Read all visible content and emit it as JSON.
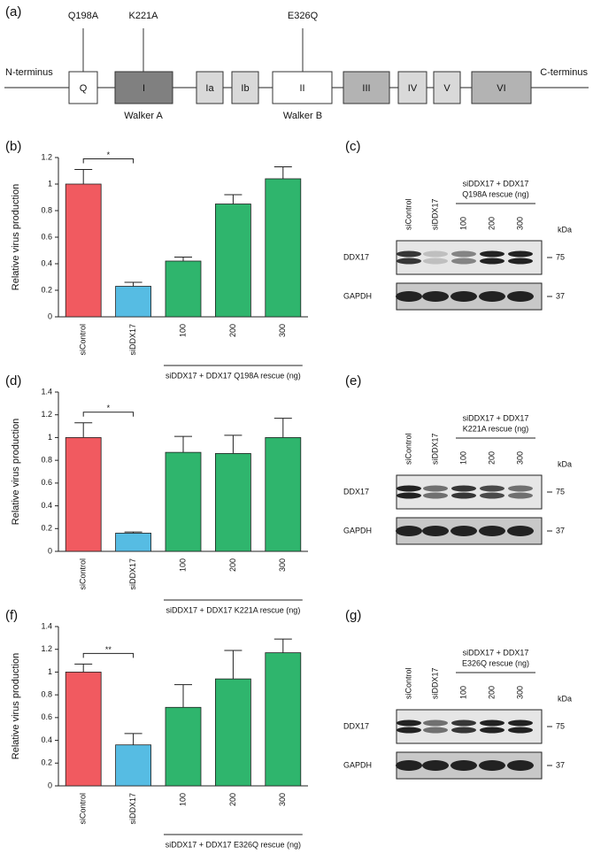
{
  "diagram": {
    "label": "(a)",
    "n_terminus": "N-terminus",
    "c_terminus": "C-terminus",
    "domains": [
      "Q",
      "I",
      "Ia",
      "Ib",
      "II",
      "III",
      "IV",
      "V",
      "VI"
    ],
    "mutations": [
      "Q198A",
      "K221A",
      "E326Q"
    ],
    "motifs": [
      "Walker A",
      "Walker B"
    ]
  },
  "chart_data": [
    {
      "type": "bar",
      "label": "(b)",
      "ylabel": "Relative virus production",
      "categories": [
        "siControl",
        "siDDX17",
        "100",
        "200",
        "300"
      ],
      "values": [
        1.0,
        0.23,
        0.42,
        0.85,
        1.04
      ],
      "errors": [
        0.11,
        0.03,
        0.03,
        0.07,
        0.09
      ],
      "colors": [
        "#f15a60",
        "#56bce3",
        "#2fb56d",
        "#2fb56d",
        "#2fb56d"
      ],
      "ylim": [
        0,
        1.2
      ],
      "yticks": [
        0,
        0.2,
        0.4,
        0.6,
        0.8,
        1,
        1.2
      ],
      "significance": "*",
      "group_label": "siDDX17 + DDX17 Q198A rescue (ng)"
    },
    {
      "type": "bar",
      "label": "(d)",
      "ylabel": "Relative virus production",
      "categories": [
        "siControl",
        "siDDX17",
        "100",
        "200",
        "300"
      ],
      "values": [
        1.0,
        0.16,
        0.87,
        0.86,
        1.0
      ],
      "errors": [
        0.13,
        0.01,
        0.14,
        0.16,
        0.17
      ],
      "colors": [
        "#f15a60",
        "#56bce3",
        "#2fb56d",
        "#2fb56d",
        "#2fb56d"
      ],
      "ylim": [
        0,
        1.4
      ],
      "yticks": [
        0,
        0.2,
        0.4,
        0.6,
        0.8,
        1,
        1.2,
        1.4
      ],
      "significance": "*",
      "group_label": "siDDX17 + DDX17 K221A rescue (ng)"
    },
    {
      "type": "bar",
      "label": "(f)",
      "ylabel": "Relative virus production",
      "categories": [
        "siControl",
        "siDDX17",
        "100",
        "200",
        "300"
      ],
      "values": [
        1.0,
        0.36,
        0.69,
        0.94,
        1.17
      ],
      "errors": [
        0.07,
        0.1,
        0.2,
        0.25,
        0.12
      ],
      "colors": [
        "#f15a60",
        "#56bce3",
        "#2fb56d",
        "#2fb56d",
        "#2fb56d"
      ],
      "ylim": [
        0,
        1.4
      ],
      "yticks": [
        0,
        0.2,
        0.4,
        0.6,
        0.8,
        1,
        1.2,
        1.4
      ],
      "significance": "**",
      "group_label": "siDDX17 + DDX17 E326Q rescue (ng)"
    }
  ],
  "blots": [
    {
      "label": "(c)",
      "lanes": [
        "siControl",
        "siDDX17",
        "100",
        "200",
        "300"
      ],
      "header": [
        "siDDX17 + DDX17",
        "Q198A rescue (ng)"
      ],
      "unit": "kDa",
      "rows": [
        "DDX17",
        "GAPDH"
      ],
      "markers": [
        "75",
        "37"
      ]
    },
    {
      "label": "(e)",
      "lanes": [
        "siControl",
        "siDDX17",
        "100",
        "200",
        "300"
      ],
      "header": [
        "siDDX17 + DDX17",
        "K221A rescue (ng)"
      ],
      "unit": "kDa",
      "rows": [
        "DDX17",
        "GAPDH"
      ],
      "markers": [
        "75",
        "37"
      ]
    },
    {
      "label": "(g)",
      "lanes": [
        "siControl",
        "siDDX17",
        "100",
        "200",
        "300"
      ],
      "header": [
        "siDDX17 + DDX17",
        "E326Q rescue (ng)"
      ],
      "unit": "kDa",
      "rows": [
        "DDX17",
        "GAPDH"
      ],
      "markers": [
        "75",
        "37"
      ]
    }
  ]
}
